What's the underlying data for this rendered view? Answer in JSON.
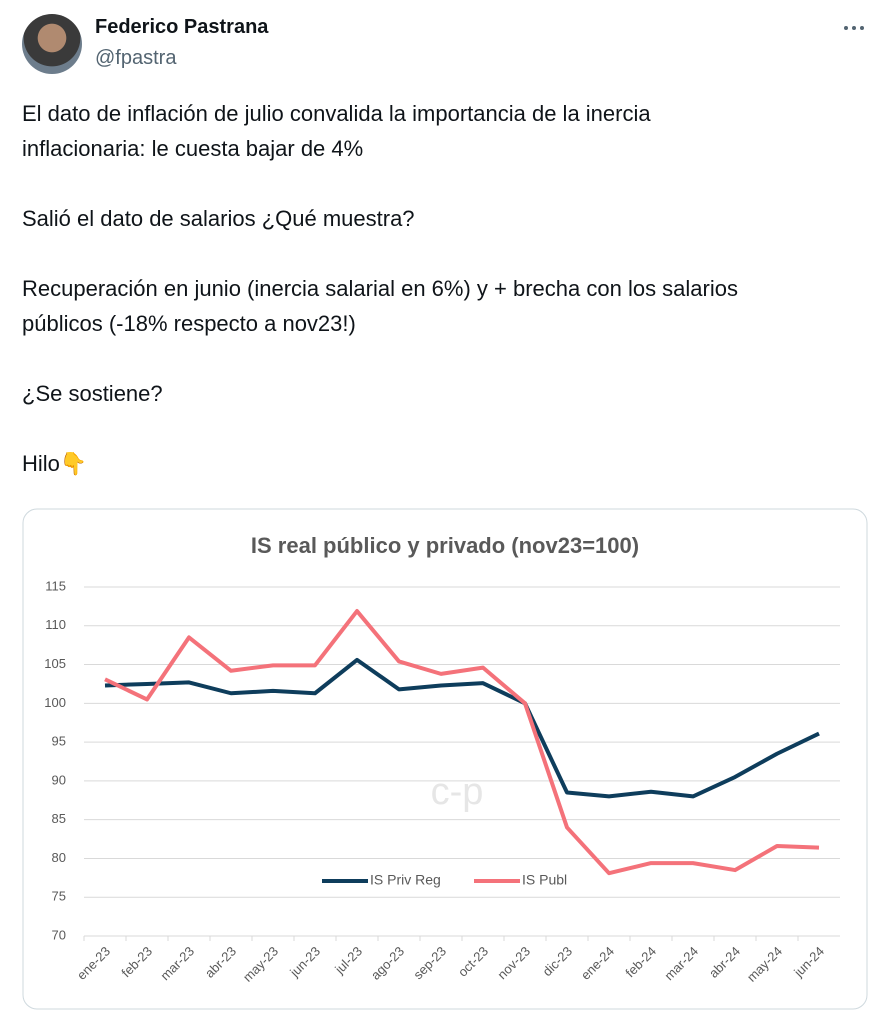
{
  "tweet": {
    "name": "Federico Pastrana",
    "handle": "@fpastra",
    "paragraphs": [
      [
        "El dato de inflación de julio convalida la importancia de la inercia",
        "inflacionaria: le cuesta bajar de 4%"
      ],
      [
        "Salió el dato de salarios ¿Qué muestra?"
      ],
      [
        "Recuperación en junio (inercia salarial en 6%) y + brecha con los salarios",
        "públicos (-18% respecto a nov23!)"
      ],
      [
        "¿Se sostiene?"
      ],
      [
        "Hilo👇"
      ]
    ]
  },
  "chart_data": {
    "type": "line",
    "title": "IS real público y privado (nov23=100)",
    "watermark": "c-p",
    "categories": [
      "ene-23",
      "feb-23",
      "mar-23",
      "abr-23",
      "may-23",
      "jun-23",
      "jul-23",
      "ago-23",
      "sep-23",
      "oct-23",
      "nov-23",
      "dic-23",
      "ene-24",
      "feb-24",
      "mar-24",
      "abr-24",
      "may-24",
      "jun-24"
    ],
    "series": [
      {
        "name": "IS Priv Reg",
        "color": "#0e3d5c",
        "values": [
          102.3,
          102.5,
          102.7,
          101.3,
          101.6,
          101.3,
          105.6,
          101.8,
          102.3,
          102.6,
          100,
          88.5,
          88,
          88.6,
          88,
          90.5,
          93.5,
          96.1
        ]
      },
      {
        "name": "IS Publ",
        "color": "#f4727a",
        "values": [
          103.1,
          100.5,
          108.5,
          104.2,
          104.9,
          104.9,
          111.9,
          105.4,
          103.8,
          104.6,
          100,
          84,
          78.1,
          79.4,
          79.4,
          78.5,
          81.6,
          81.4
        ]
      }
    ],
    "ylim": [
      70,
      115
    ],
    "yticks": [
      70,
      75,
      80,
      85,
      90,
      95,
      100,
      105,
      110,
      115
    ],
    "grid": true,
    "legend": "bottom"
  }
}
